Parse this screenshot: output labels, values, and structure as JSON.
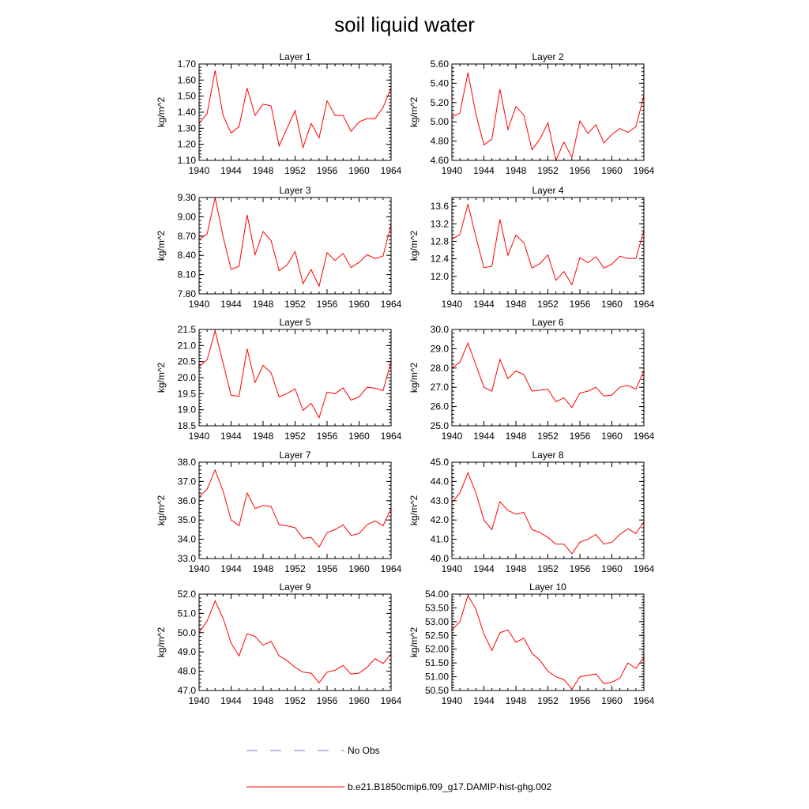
{
  "figure": {
    "title": "soil liquid water"
  },
  "legend": {
    "items": [
      {
        "label": "No Obs",
        "color": "#7b7bd6",
        "style": "dashed"
      },
      {
        "label": "b.e21.B1850cmip6.f09_g17.DAMIP-hist-ghg.002",
        "color": "#ff0000",
        "style": "solid"
      }
    ]
  },
  "chart_data": [
    {
      "type": "line",
      "title": "Layer 1",
      "ylabel": "kg/m^2",
      "ylim": [
        1.1,
        1.7
      ],
      "decimals": 2,
      "yticks": [
        1.1,
        1.2,
        1.3,
        1.4,
        1.5,
        1.6,
        1.7
      ],
      "xlim": [
        1940,
        1964
      ],
      "xticks": [
        1940,
        1944,
        1948,
        1952,
        1956,
        1960,
        1964
      ],
      "x": [
        1940,
        1941,
        1942,
        1943,
        1944,
        1945,
        1946,
        1947,
        1948,
        1949,
        1950,
        1951,
        1952,
        1953,
        1954,
        1955,
        1956,
        1957,
        1958,
        1959,
        1960,
        1961,
        1962,
        1963,
        1964
      ],
      "series": [
        {
          "color": "#ff0000",
          "values": [
            1.33,
            1.39,
            1.66,
            1.38,
            1.27,
            1.31,
            1.55,
            1.38,
            1.45,
            1.44,
            1.19,
            1.3,
            1.41,
            1.18,
            1.33,
            1.24,
            1.47,
            1.38,
            1.38,
            1.28,
            1.34,
            1.36,
            1.36,
            1.43,
            1.55
          ]
        }
      ]
    },
    {
      "type": "line",
      "title": "Layer 2",
      "ylabel": "kg/m^2",
      "ylim": [
        4.6,
        5.6
      ],
      "decimals": 2,
      "yticks": [
        4.6,
        4.8,
        5.0,
        5.2,
        5.4,
        5.6
      ],
      "xlim": [
        1940,
        1964
      ],
      "xticks": [
        1940,
        1944,
        1948,
        1952,
        1956,
        1960,
        1964
      ],
      "x": [
        1940,
        1941,
        1942,
        1943,
        1944,
        1945,
        1946,
        1947,
        1948,
        1949,
        1950,
        1951,
        1952,
        1953,
        1954,
        1955,
        1956,
        1957,
        1958,
        1959,
        1960,
        1961,
        1962,
        1963,
        1964
      ],
      "series": [
        {
          "color": "#ff0000",
          "values": [
            5.05,
            5.09,
            5.51,
            5.08,
            4.76,
            4.82,
            5.34,
            4.92,
            5.16,
            5.07,
            4.71,
            4.82,
            4.99,
            4.6,
            4.79,
            4.63,
            5.01,
            4.88,
            4.97,
            4.78,
            4.87,
            4.93,
            4.89,
            4.95,
            5.27
          ]
        }
      ]
    },
    {
      "type": "line",
      "title": "Layer 3",
      "ylabel": "kg/m^2",
      "ylim": [
        7.8,
        9.3
      ],
      "decimals": 2,
      "yticks": [
        7.8,
        8.1,
        8.4,
        8.7,
        9.0,
        9.3
      ],
      "xlim": [
        1940,
        1964
      ],
      "xticks": [
        1940,
        1944,
        1948,
        1952,
        1956,
        1960,
        1964
      ],
      "x": [
        1940,
        1941,
        1942,
        1943,
        1944,
        1945,
        1946,
        1947,
        1948,
        1949,
        1950,
        1951,
        1952,
        1953,
        1954,
        1955,
        1956,
        1957,
        1958,
        1959,
        1960,
        1961,
        1962,
        1963,
        1964
      ],
      "series": [
        {
          "color": "#ff0000",
          "values": [
            8.65,
            8.73,
            9.3,
            8.69,
            8.18,
            8.23,
            9.03,
            8.41,
            8.77,
            8.63,
            8.16,
            8.25,
            8.46,
            7.96,
            8.18,
            7.92,
            8.44,
            8.32,
            8.43,
            8.21,
            8.29,
            8.41,
            8.35,
            8.39,
            8.88
          ]
        }
      ]
    },
    {
      "type": "line",
      "title": "Layer 4",
      "ylabel": "kg/m^2",
      "ylim": [
        11.6,
        13.8
      ],
      "decimals": 1,
      "yticks": [
        12.0,
        12.4,
        12.8,
        13.2,
        13.6
      ],
      "xlim": [
        1940,
        1964
      ],
      "xticks": [
        1940,
        1944,
        1948,
        1952,
        1956,
        1960,
        1964
      ],
      "x": [
        1940,
        1941,
        1942,
        1943,
        1944,
        1945,
        1946,
        1947,
        1948,
        1949,
        1950,
        1951,
        1952,
        1953,
        1954,
        1955,
        1956,
        1957,
        1958,
        1959,
        1960,
        1961,
        1962,
        1963,
        1964
      ],
      "series": [
        {
          "color": "#ff0000",
          "values": [
            12.85,
            12.95,
            13.65,
            12.9,
            12.2,
            12.23,
            13.3,
            12.48,
            12.94,
            12.77,
            12.19,
            12.29,
            12.49,
            11.91,
            12.11,
            11.81,
            12.43,
            12.31,
            12.45,
            12.19,
            12.28,
            12.46,
            12.41,
            12.41,
            13.05
          ]
        }
      ]
    },
    {
      "type": "line",
      "title": "Layer 5",
      "ylabel": "kg/m^2",
      "ylim": [
        18.5,
        21.5
      ],
      "decimals": 1,
      "yticks": [
        18.5,
        19.0,
        19.5,
        20.0,
        20.5,
        21.0,
        21.5
      ],
      "xlim": [
        1940,
        1964
      ],
      "xticks": [
        1940,
        1944,
        1948,
        1952,
        1956,
        1960,
        1964
      ],
      "x": [
        1940,
        1941,
        1942,
        1943,
        1944,
        1945,
        1946,
        1947,
        1948,
        1949,
        1950,
        1951,
        1952,
        1953,
        1954,
        1955,
        1956,
        1957,
        1958,
        1959,
        1960,
        1961,
        1962,
        1963,
        1964
      ],
      "series": [
        {
          "color": "#ff0000",
          "values": [
            20.35,
            20.55,
            21.45,
            20.45,
            19.45,
            19.42,
            20.9,
            19.85,
            20.38,
            20.15,
            19.4,
            19.51,
            19.65,
            18.98,
            19.2,
            18.75,
            19.55,
            19.5,
            19.68,
            19.3,
            19.4,
            19.7,
            19.67,
            19.6,
            20.5
          ]
        }
      ]
    },
    {
      "type": "line",
      "title": "Layer 6",
      "ylabel": "kg/m^2",
      "ylim": [
        25.0,
        30.0
      ],
      "decimals": 1,
      "yticks": [
        25.0,
        26.0,
        27.0,
        28.0,
        29.0,
        30.0
      ],
      "xlim": [
        1940,
        1964
      ],
      "xticks": [
        1940,
        1944,
        1948,
        1952,
        1956,
        1960,
        1964
      ],
      "x": [
        1940,
        1941,
        1942,
        1943,
        1944,
        1945,
        1946,
        1947,
        1948,
        1949,
        1950,
        1951,
        1952,
        1953,
        1954,
        1955,
        1956,
        1957,
        1958,
        1959,
        1960,
        1961,
        1962,
        1963,
        1964
      ],
      "series": [
        {
          "color": "#ff0000",
          "values": [
            28.0,
            28.3,
            29.3,
            28.15,
            27.0,
            26.8,
            28.45,
            27.45,
            27.85,
            27.65,
            26.8,
            26.85,
            26.9,
            26.25,
            26.45,
            25.95,
            26.7,
            26.8,
            27.0,
            26.55,
            26.6,
            27.0,
            27.1,
            26.9,
            27.85
          ]
        }
      ]
    },
    {
      "type": "line",
      "title": "Layer 7",
      "ylabel": "kg/m^2",
      "ylim": [
        33.0,
        38.0
      ],
      "decimals": 1,
      "yticks": [
        33.0,
        34.0,
        35.0,
        36.0,
        37.0,
        38.0
      ],
      "xlim": [
        1940,
        1964
      ],
      "xticks": [
        1940,
        1944,
        1948,
        1952,
        1956,
        1960,
        1964
      ],
      "x": [
        1940,
        1941,
        1942,
        1943,
        1944,
        1945,
        1946,
        1947,
        1948,
        1949,
        1950,
        1951,
        1952,
        1953,
        1954,
        1955,
        1956,
        1957,
        1958,
        1959,
        1960,
        1961,
        1962,
        1963,
        1964
      ],
      "series": [
        {
          "color": "#ff0000",
          "values": [
            36.2,
            36.6,
            37.6,
            36.5,
            35.0,
            34.7,
            36.4,
            35.6,
            35.75,
            35.7,
            34.75,
            34.7,
            34.6,
            34.05,
            34.1,
            33.6,
            34.35,
            34.5,
            34.75,
            34.2,
            34.3,
            34.75,
            34.95,
            34.7,
            35.6
          ]
        }
      ]
    },
    {
      "type": "line",
      "title": "Layer 8",
      "ylabel": "kg/m^2",
      "ylim": [
        40.0,
        45.0
      ],
      "decimals": 1,
      "yticks": [
        40.0,
        41.0,
        42.0,
        43.0,
        44.0,
        45.0
      ],
      "xlim": [
        1940,
        1964
      ],
      "xticks": [
        1940,
        1944,
        1948,
        1952,
        1956,
        1960,
        1964
      ],
      "x": [
        1940,
        1941,
        1942,
        1943,
        1944,
        1945,
        1946,
        1947,
        1948,
        1949,
        1950,
        1951,
        1952,
        1953,
        1954,
        1955,
        1956,
        1957,
        1958,
        1959,
        1960,
        1961,
        1962,
        1963,
        1964
      ],
      "series": [
        {
          "color": "#ff0000",
          "values": [
            42.9,
            43.4,
            44.45,
            43.4,
            42.0,
            41.5,
            42.95,
            42.5,
            42.3,
            42.4,
            41.5,
            41.35,
            41.1,
            40.75,
            40.75,
            40.25,
            40.85,
            41.0,
            41.25,
            40.75,
            40.85,
            41.25,
            41.55,
            41.3,
            41.9
          ]
        }
      ]
    },
    {
      "type": "line",
      "title": "Layer 9",
      "ylabel": "kg/m^2",
      "ylim": [
        47.0,
        52.0
      ],
      "decimals": 1,
      "yticks": [
        47.0,
        48.0,
        49.0,
        50.0,
        51.0,
        52.0
      ],
      "xlim": [
        1940,
        1964
      ],
      "xticks": [
        1940,
        1944,
        1948,
        1952,
        1956,
        1960,
        1964
      ],
      "x": [
        1940,
        1941,
        1942,
        1943,
        1944,
        1945,
        1946,
        1947,
        1948,
        1949,
        1950,
        1951,
        1952,
        1953,
        1954,
        1955,
        1956,
        1957,
        1958,
        1959,
        1960,
        1961,
        1962,
        1963,
        1964
      ],
      "series": [
        {
          "color": "#ff0000",
          "values": [
            50.0,
            50.6,
            51.65,
            50.75,
            49.45,
            48.8,
            49.95,
            49.8,
            49.35,
            49.55,
            48.8,
            48.55,
            48.2,
            47.95,
            47.9,
            47.4,
            47.95,
            48.05,
            48.3,
            47.85,
            47.9,
            48.2,
            48.65,
            48.4,
            48.9
          ]
        }
      ]
    },
    {
      "type": "line",
      "title": "Layer 10",
      "ylabel": "kg/m^2",
      "ylim": [
        50.5,
        54.0
      ],
      "decimals": 2,
      "yticks": [
        50.5,
        51.0,
        51.5,
        52.0,
        52.5,
        53.0,
        53.5,
        54.0
      ],
      "xlim": [
        1940,
        1964
      ],
      "xticks": [
        1940,
        1944,
        1948,
        1952,
        1956,
        1960,
        1964
      ],
      "x": [
        1940,
        1941,
        1942,
        1943,
        1944,
        1945,
        1946,
        1947,
        1948,
        1949,
        1950,
        1951,
        1952,
        1953,
        1954,
        1955,
        1956,
        1957,
        1958,
        1959,
        1960,
        1961,
        1962,
        1963,
        1964
      ],
      "series": [
        {
          "color": "#ff0000",
          "values": [
            52.7,
            53.0,
            53.95,
            53.45,
            52.55,
            51.95,
            52.6,
            52.7,
            52.25,
            52.4,
            51.85,
            51.6,
            51.2,
            51.0,
            50.9,
            50.55,
            51.0,
            51.05,
            51.1,
            50.75,
            50.8,
            50.95,
            51.5,
            51.3,
            51.7
          ]
        }
      ]
    }
  ]
}
